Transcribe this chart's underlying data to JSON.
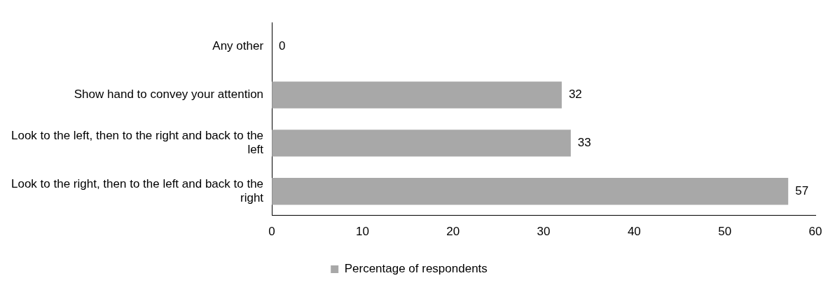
{
  "chart_data": {
    "type": "bar",
    "orientation": "horizontal",
    "categories": [
      "Any other",
      "Show hand to convey your attention",
      "Look to the left, then to the right and back to the left",
      "Look to the right, then to the left and back to the right"
    ],
    "series": [
      {
        "name": "Percentage of respondents",
        "color": "#a8a8a8",
        "values": [
          0,
          32,
          33,
          57
        ]
      }
    ],
    "xlim": [
      0,
      60
    ],
    "xticks": [
      0,
      10,
      20,
      30,
      40,
      50,
      60
    ],
    "data_labels": true,
    "grid": false,
    "legend": "bottom"
  }
}
